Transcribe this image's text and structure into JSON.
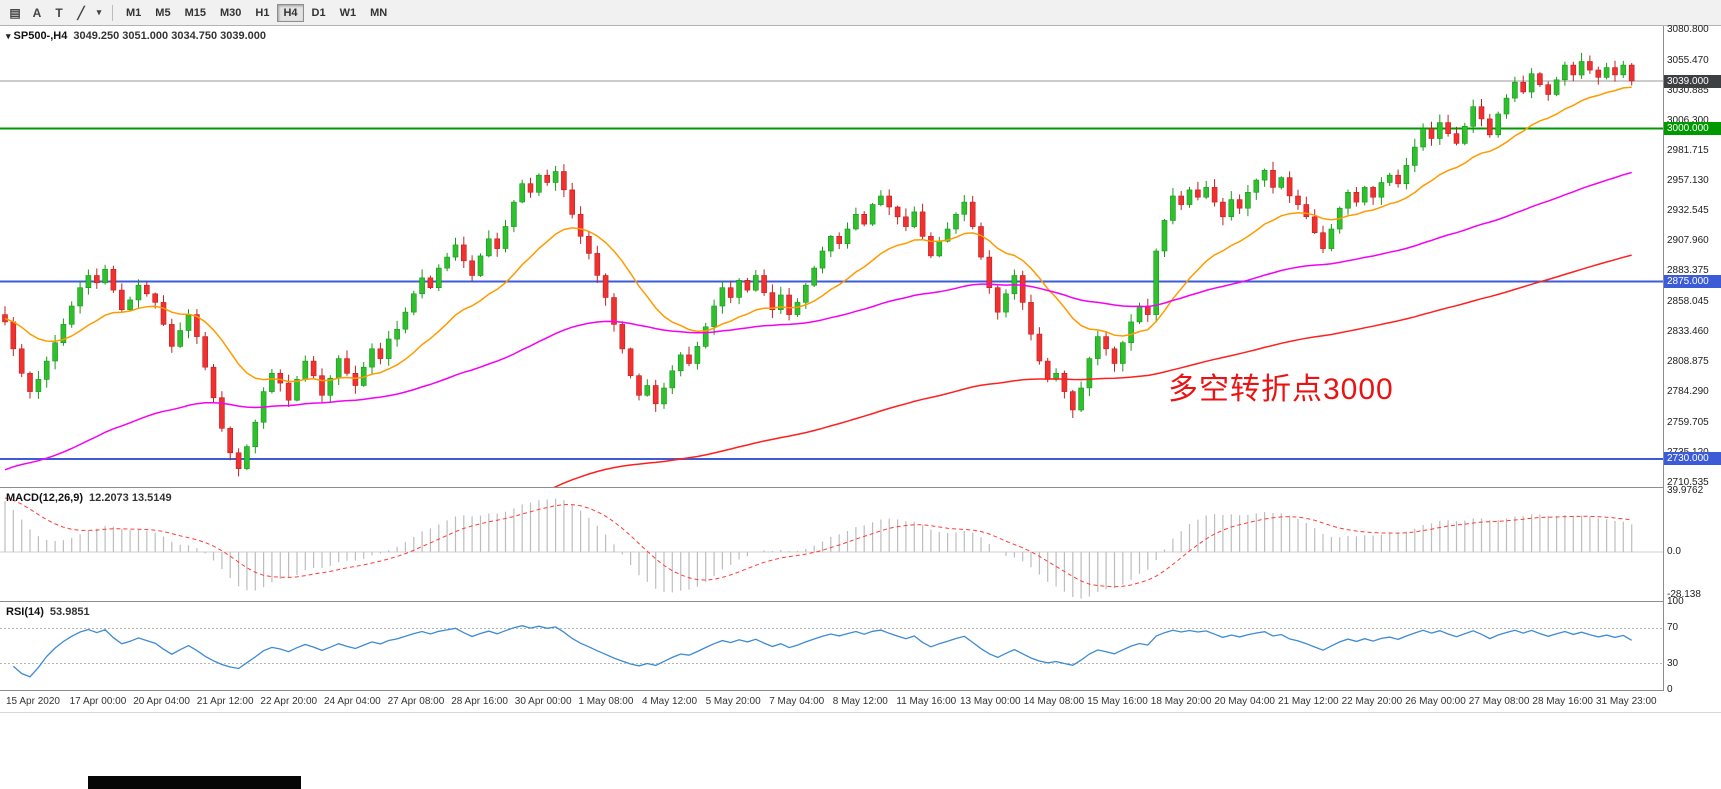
{
  "toolbar": {
    "icon_buttons": [
      {
        "name": "chart-window-icon",
        "glyph": "▤"
      },
      {
        "name": "cursor-a-icon",
        "glyph": "A"
      },
      {
        "name": "text-tool-icon",
        "glyph": "T"
      },
      {
        "name": "line-studies-icon",
        "glyph": "╱"
      },
      {
        "name": "dropdown-caret-icon",
        "glyph": "▾"
      }
    ],
    "timeframes": [
      "M1",
      "M5",
      "M15",
      "M30",
      "H1",
      "H4",
      "D1",
      "W1",
      "MN"
    ],
    "active_timeframe": "H4"
  },
  "main": {
    "symbol": "SP500-,H4",
    "ohlc": "3049.250 3051.000 3034.750 3039.000",
    "annotation": {
      "text": "多空转折点3000",
      "color": "#ea1212"
    }
  },
  "macd": {
    "label": "MACD(12,26,9)",
    "values": "12.2073 13.5149"
  },
  "rsi": {
    "label": "RSI(14)",
    "value": "53.9851"
  },
  "chart_data": [
    {
      "name": "price",
      "type": "candlestick",
      "symbol": "SP500-",
      "timeframe": "H4",
      "title": "SP500-,H4",
      "ohlc_current": {
        "open": 3049.25,
        "high": 3051.0,
        "low": 3034.75,
        "close": 3039.0
      },
      "ylim": [
        2707,
        3084
      ],
      "first_open": 2848,
      "closes": [
        2842,
        2820,
        2800,
        2785,
        2795,
        2810,
        2825,
        2840,
        2855,
        2870,
        2880,
        2874,
        2885,
        2868,
        2852,
        2860,
        2872,
        2865,
        2858,
        2840,
        2822,
        2835,
        2848,
        2830,
        2805,
        2780,
        2755,
        2735,
        2722,
        2740,
        2760,
        2785,
        2800,
        2792,
        2778,
        2795,
        2810,
        2798,
        2782,
        2796,
        2812,
        2800,
        2790,
        2805,
        2820,
        2812,
        2828,
        2836,
        2850,
        2865,
        2878,
        2870,
        2886,
        2895,
        2905,
        2892,
        2880,
        2896,
        2910,
        2902,
        2920,
        2940,
        2955,
        2948,
        2962,
        2956,
        2965,
        2950,
        2930,
        2912,
        2898,
        2880,
        2862,
        2840,
        2820,
        2798,
        2782,
        2790,
        2775,
        2788,
        2802,
        2815,
        2808,
        2822,
        2838,
        2855,
        2870,
        2862,
        2876,
        2868,
        2880,
        2866,
        2852,
        2864,
        2848,
        2858,
        2872,
        2886,
        2900,
        2912,
        2906,
        2918,
        2930,
        2922,
        2938,
        2945,
        2936,
        2928,
        2920,
        2932,
        2912,
        2896,
        2908,
        2918,
        2930,
        2940,
        2920,
        2895,
        2870,
        2850,
        2865,
        2880,
        2858,
        2832,
        2810,
        2795,
        2800,
        2785,
        2770,
        2788,
        2812,
        2830,
        2820,
        2808,
        2825,
        2842,
        2855,
        2848,
        2900,
        2925,
        2945,
        2938,
        2950,
        2944,
        2952,
        2940,
        2928,
        2942,
        2935,
        2948,
        2958,
        2966,
        2952,
        2960,
        2945,
        2938,
        2928,
        2915,
        2902,
        2918,
        2935,
        2948,
        2940,
        2952,
        2944,
        2956,
        2962,
        2955,
        2970,
        2985,
        3000,
        2992,
        3005,
        2996,
        2988,
        3002,
        3018,
        3008,
        2995,
        3012,
        3025,
        3038,
        3030,
        3045,
        3036,
        3028,
        3040,
        3052,
        3044,
        3055,
        3048,
        3042,
        3050,
        3044,
        3052,
        3039
      ],
      "x_labels": [
        "15 Apr 2020",
        "17 Apr 00:00",
        "20 Apr 04:00",
        "21 Apr 12:00",
        "22 Apr 20:00",
        "24 Apr 04:00",
        "27 Apr 08:00",
        "28 Apr 16:00",
        "30 Apr 00:00",
        "1 May 08:00",
        "4 May 12:00",
        "5 May 20:00",
        "7 May 04:00",
        "8 May 12:00",
        "11 May 16:00",
        "13 May 00:00",
        "14 May 08:00",
        "15 May 16:00",
        "18 May 20:00",
        "20 May 04:00",
        "21 May 12:00",
        "22 May 20:00",
        "26 May 00:00",
        "27 May 08:00",
        "28 May 16:00",
        "31 May 23:00"
      ],
      "y_ticks": [
        "3080.800",
        "3055.470",
        "3030.885",
        "3006.300",
        "2981.715",
        "2957.130",
        "2932.545",
        "2907.960",
        "2883.375",
        "2858.045",
        "2833.460",
        "2808.875",
        "2784.290",
        "2759.705",
        "2735.120",
        "2710.535"
      ],
      "levels": [
        {
          "price": 3039.0,
          "color": "#9a9a9a",
          "width": 1,
          "badge": "3039.000",
          "badge_color": "#3c4043"
        },
        {
          "price": 3000.0,
          "color": "#009a00",
          "width": 2,
          "badge": "3000.000",
          "badge_color": "#009a00"
        },
        {
          "price": 2875.0,
          "color": "#3c5bd7",
          "width": 2,
          "badge": "2875.000",
          "badge_color": "#3c5bd7"
        },
        {
          "price": 2730.0,
          "color": "#3c5bd7",
          "width": 2,
          "badge": "2730.000",
          "badge_color": "#3c5bd7"
        }
      ],
      "moving_averages": [
        {
          "name": "ma-fast-orange",
          "color": "#ff9b00",
          "period": 18,
          "init": 2845
        },
        {
          "name": "ma-mid-magenta",
          "color": "#f400f4",
          "period": 80,
          "init": 2718
        },
        {
          "name": "ma-slow-red",
          "color": "#ff1f1f",
          "period": 160,
          "init": 2520
        }
      ],
      "up_color": "#2fbf2f",
      "up_edge": "#169a16",
      "down_color": "#f13030",
      "down_edge": "#c22020",
      "grid": false,
      "legend_position": "top-left"
    },
    {
      "name": "macd",
      "type": "bar",
      "params": [
        12,
        26,
        9
      ],
      "value_main": 12.2073,
      "value_signal": 13.5149,
      "ylim": [
        -32,
        42
      ],
      "y_ticks": [
        "39.9762",
        "0.0",
        "-28.138"
      ],
      "bar_color": "#bdbdbd",
      "signal_color": "#ff3b3b",
      "zero_color": "#cfcfcf",
      "seed": {
        "fast_offset": 22,
        "slow_offset": -16,
        "signal_start": 36
      }
    },
    {
      "name": "rsi",
      "type": "line",
      "period": 14,
      "value": 53.9851,
      "ylim": [
        0,
        100
      ],
      "levels": [
        70,
        30
      ],
      "y_ticks": [
        "100",
        "70",
        "30",
        "0"
      ],
      "line_color": "#3d8bd4",
      "level_color": "#b5b5b5"
    }
  ]
}
